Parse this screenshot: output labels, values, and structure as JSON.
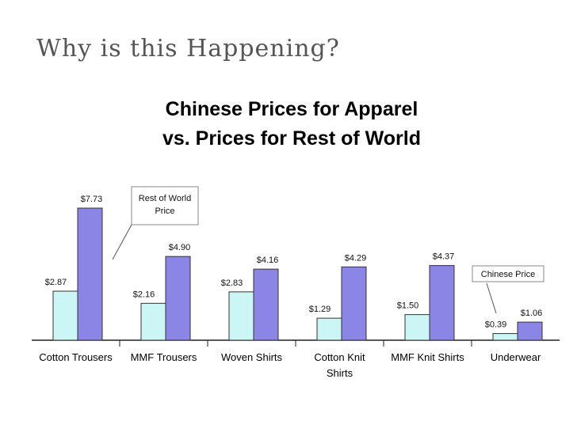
{
  "slide": {
    "title": "Why is this Happening?"
  },
  "chart_data": {
    "type": "bar",
    "title": "Chinese Prices for Apparel",
    "subtitle": "vs. Prices for Rest of World",
    "xlabel": "",
    "ylabel": "",
    "ylim": [
      0,
      8.5
    ],
    "grid": false,
    "categories": [
      [
        "Cotton Trousers"
      ],
      [
        "MMF Trousers"
      ],
      [
        "Woven Shirts"
      ],
      [
        "Cotton Knit",
        "Shirts"
      ],
      [
        "MMF Knit Shirts"
      ],
      [
        "Underwear"
      ]
    ],
    "series": [
      {
        "name": "Chinese Price",
        "values": [
          2.87,
          2.16,
          2.83,
          1.29,
          1.5,
          0.39
        ],
        "labels": [
          "$2.87",
          "$2.16",
          "$2.83",
          "$1.29",
          "$1.50",
          "$0.39"
        ],
        "color": "#ccf5f5"
      },
      {
        "name": "Rest of World Price",
        "values": [
          7.73,
          4.9,
          4.16,
          4.29,
          4.37,
          1.06
        ],
        "labels": [
          "$7.73",
          "$4.90",
          "$4.16",
          "$4.29",
          "$4.37",
          "$1.06"
        ],
        "color": "#8b86e6"
      }
    ],
    "annotations": [
      {
        "text": [
          "Rest of World",
          "Price"
        ],
        "target": "Rest of World Price"
      },
      {
        "text": [
          "Chinese Price"
        ],
        "target": "Chinese Price"
      }
    ]
  }
}
